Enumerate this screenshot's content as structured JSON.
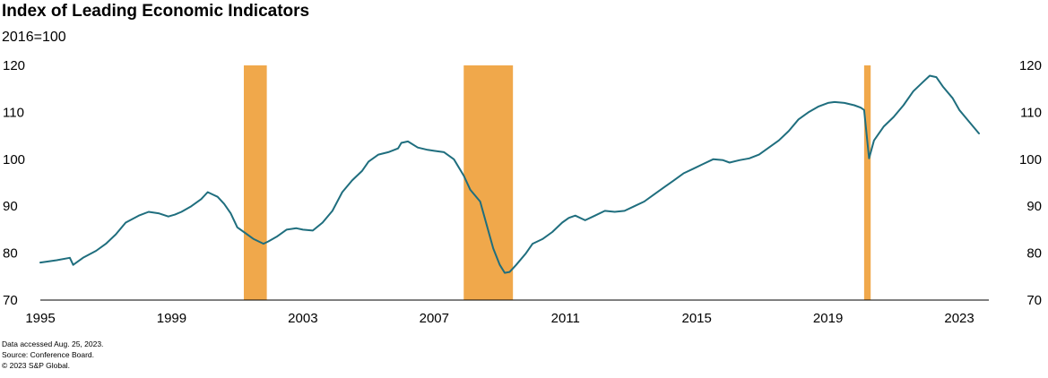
{
  "title": "Index of Leading Economic Indicators",
  "subtitle": "2016=100",
  "notes": [
    "Data accessed Aug. 25, 2023.",
    "Source: Conference Board.",
    "© 2023 S&P Global."
  ],
  "colors": {
    "line": "#1f6e7e",
    "recession": "#f0a84b",
    "axis": "#000000"
  },
  "chart_data": {
    "type": "line",
    "title": "Index of Leading Economic Indicators",
    "ylabel": "2016=100",
    "xlim": [
      1995.0,
      2023.9
    ],
    "ylim": [
      70,
      120
    ],
    "x_ticks": [
      1995,
      1999,
      2003,
      2007,
      2011,
      2015,
      2019,
      2023
    ],
    "y_ticks": [
      70,
      80,
      90,
      100,
      110,
      120
    ],
    "grid": false,
    "legend": "none",
    "recessions": [
      {
        "start": 2001.2,
        "end": 2001.9
      },
      {
        "start": 2007.9,
        "end": 2009.4
      },
      {
        "start": 2020.1,
        "end": 2020.3
      }
    ],
    "series": [
      {
        "x": [
          1995.0,
          1995.5,
          1995.9,
          1996.0,
          1996.3,
          1996.7,
          1997.0,
          1997.3,
          1997.6,
          1998.0,
          1998.3,
          1998.6,
          1998.9,
          1999.1,
          1999.3,
          1999.6,
          1999.9,
          2000.1,
          2000.25,
          2000.4,
          2000.6,
          2000.8,
          2001.0,
          2001.2,
          2001.5,
          2001.8,
          2001.95,
          2002.2,
          2002.5,
          2002.8,
          2003.0,
          2003.3,
          2003.6,
          2003.9,
          2004.2,
          2004.5,
          2004.8,
          2005.0,
          2005.3,
          2005.6,
          2005.9,
          2006.0,
          2006.2,
          2006.5,
          2006.8,
          2007.0,
          2007.3,
          2007.6,
          2007.9,
          2008.1,
          2008.4,
          2008.6,
          2008.8,
          2009.0,
          2009.15,
          2009.3,
          2009.5,
          2009.8,
          2010.0,
          2010.3,
          2010.6,
          2010.9,
          2011.1,
          2011.3,
          2011.6,
          2011.9,
          2012.2,
          2012.5,
          2012.8,
          2013.1,
          2013.4,
          2013.7,
          2014.0,
          2014.3,
          2014.6,
          2014.9,
          2015.2,
          2015.5,
          2015.8,
          2016.0,
          2016.3,
          2016.6,
          2016.9,
          2017.2,
          2017.5,
          2017.8,
          2018.1,
          2018.4,
          2018.7,
          2019.0,
          2019.2,
          2019.5,
          2019.8,
          2020.0,
          2020.1,
          2020.25,
          2020.4,
          2020.7,
          2021.0,
          2021.3,
          2021.6,
          2021.9,
          2022.1,
          2022.3,
          2022.5,
          2022.8,
          2023.0,
          2023.3,
          2023.6
        ],
        "values": [
          78.0,
          78.5,
          79.0,
          77.5,
          79.0,
          80.5,
          82.0,
          84.0,
          86.5,
          88.0,
          88.8,
          88.5,
          87.8,
          88.2,
          88.8,
          90.0,
          91.5,
          93.0,
          92.5,
          92.0,
          90.5,
          88.5,
          85.5,
          84.5,
          83.0,
          82.0,
          82.5,
          83.5,
          85.0,
          85.3,
          85.0,
          84.8,
          86.5,
          89.0,
          93.0,
          95.5,
          97.5,
          99.5,
          101.0,
          101.5,
          102.3,
          103.5,
          103.8,
          102.5,
          102.0,
          101.8,
          101.5,
          100.0,
          96.5,
          93.5,
          91.0,
          86.0,
          81.0,
          77.5,
          75.8,
          76.0,
          77.5,
          80.0,
          82.0,
          83.0,
          84.5,
          86.5,
          87.5,
          88.0,
          87.0,
          88.0,
          89.0,
          88.8,
          89.0,
          90.0,
          91.0,
          92.5,
          94.0,
          95.5,
          97.0,
          98.0,
          99.0,
          100.0,
          99.8,
          99.3,
          99.8,
          100.2,
          101.0,
          102.5,
          104.0,
          106.0,
          108.5,
          110.0,
          111.2,
          112.0,
          112.2,
          112.0,
          111.5,
          111.0,
          110.5,
          100.2,
          104.0,
          107.0,
          109.0,
          111.5,
          114.5,
          116.5,
          117.8,
          117.5,
          115.5,
          113.0,
          110.5,
          108.0,
          105.5
        ]
      }
    ]
  }
}
